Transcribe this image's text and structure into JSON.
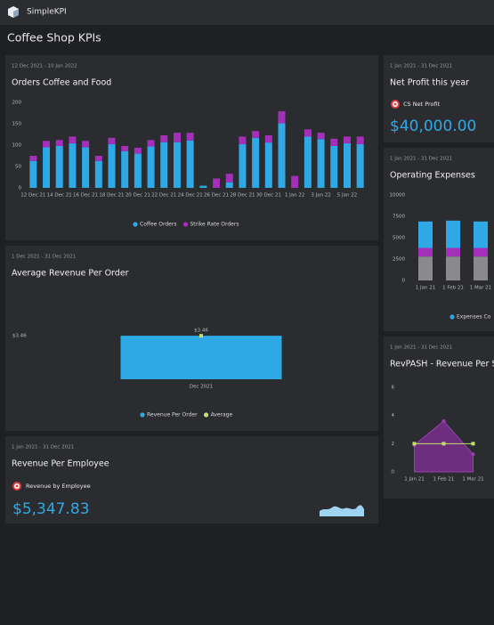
{
  "header": {
    "brand": "SimpleKPI"
  },
  "page_title": "Coffee Shop KPIs",
  "cards": [
    {
      "date_range": "1 Jan 2021 - 31 Dec 2021",
      "title": "Revenue Per Employee",
      "metric": "Revenue by Employee",
      "value": "$5,347.83"
    },
    {
      "date_range": "1 Jan 2021 - 31 Dec 2021",
      "title": "Net Profit this year",
      "metric": "CS Net Profit",
      "value": "$40,000.00"
    }
  ],
  "chart_data": [
    {
      "type": "bar",
      "date_range": "12 Dec 2021 - 10 Jan 2022",
      "title": "Orders Coffee and Food",
      "categories": [
        "12 Dec 21",
        null,
        "14 Dec 21",
        null,
        "16 Dec 21",
        null,
        "18 Dec 21",
        null,
        "20 Dec 21",
        null,
        "22 Dec 21",
        null,
        "24 Dec 21",
        null,
        "26 Dec 21",
        null,
        "28 Dec 21",
        null,
        "30 Dec 21",
        null,
        "1 Jan 22",
        null,
        "3 Jan 22",
        null,
        "5 Jan 22",
        null
      ],
      "series": [
        {
          "name": "Coffee Orders",
          "color": "#2fa9e6",
          "values": [
            63,
            95,
            98,
            104,
            95,
            63,
            102,
            86,
            80,
            97,
            107,
            107,
            111,
            5,
            0,
            13,
            102,
            117,
            106,
            151,
            0,
            120,
            114,
            98,
            104,
            102
          ]
        },
        {
          "name": "Strike Rate Orders",
          "color": "#a42fb8",
          "values": [
            12,
            15,
            14,
            16,
            15,
            12,
            15,
            12,
            14,
            15,
            16,
            22,
            18,
            0,
            22,
            20,
            18,
            16,
            17,
            28,
            28,
            17,
            15,
            17,
            16,
            18
          ]
        }
      ],
      "ylim": [
        0,
        200
      ],
      "yticks": [
        0,
        50,
        100,
        150,
        200
      ],
      "grid": false
    },
    {
      "type": "bar",
      "date_range": "1 Dec 2021 - 31 Dec 2021",
      "title": "Average Revenue Per Order",
      "categories": [
        "Dec 2021"
      ],
      "series": [
        {
          "name": "Revenue Per Order",
          "color": "#2fa9e6",
          "values": [
            3.46
          ],
          "value_labels": [
            "$3.46"
          ]
        },
        {
          "name": "Average",
          "color": "#c6de6e",
          "type": "line",
          "values": [
            3.46
          ]
        }
      ],
      "ylim": [
        0,
        7.5
      ],
      "yticks": [
        {
          "value": 3.46,
          "label": "$3.46"
        }
      ],
      "grid": false
    },
    {
      "type": "bar",
      "date_range": "1 Jan 2021 - 31 Dec 2021",
      "title": "Operating Expenses",
      "categories": [
        "1 Jan 21",
        "1 Feb 21",
        "1 Mar 21"
      ],
      "series": [
        {
          "color": "#8a8a8c",
          "values": [
            2800,
            2800,
            2800
          ]
        },
        {
          "color": "#a42fb8",
          "values": [
            1000,
            1000,
            1000
          ]
        },
        {
          "name": "Expenses Co",
          "color": "#2fa9e6",
          "values": [
            3100,
            3200,
            3100
          ]
        }
      ],
      "ylim": [
        0,
        10000
      ],
      "yticks": [
        0,
        2500,
        5000,
        7500,
        10000
      ],
      "grid": false
    },
    {
      "type": "area",
      "date_range": "1 Jan 2021 - 31 Dec 2021",
      "title": "RevPASH - Revenue Per Sea",
      "categories": [
        "1 Jan 21",
        "1 Feb 21",
        "1 Mar 21"
      ],
      "series": [
        {
          "color": "#7a2f8e",
          "values": [
            1.9,
            3.6,
            1.25
          ]
        },
        {
          "color": "#c6de6e",
          "type": "line",
          "values": [
            2,
            2,
            2
          ]
        }
      ],
      "ylim": [
        0,
        6
      ],
      "yticks": [
        0,
        2,
        4,
        6
      ],
      "grid": false
    }
  ]
}
